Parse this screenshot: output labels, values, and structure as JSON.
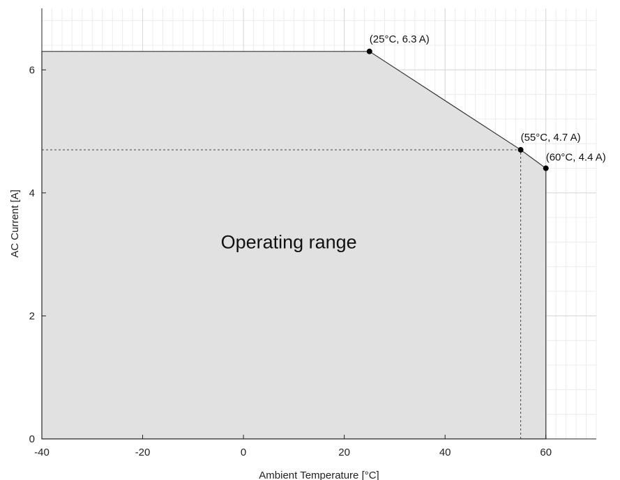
{
  "chart_data": {
    "type": "area",
    "title": "",
    "xlabel": "Ambient Temperature [°C]",
    "ylabel": "AC Current [A]",
    "xlim": [
      -40,
      70
    ],
    "ylim": [
      0,
      7
    ],
    "xticks": [
      -40,
      -20,
      0,
      20,
      40,
      60
    ],
    "yticks": [
      0,
      2,
      4,
      6
    ],
    "x_minor_step": 2,
    "y_minor_step": 0.4,
    "grid": true,
    "series": [
      {
        "x": [
          -40,
          25,
          55,
          60,
          60,
          -40
        ],
        "y": [
          6.3,
          6.3,
          4.7,
          4.4,
          0,
          0
        ],
        "fill": "#e1e1e1",
        "line": "#333333"
      }
    ],
    "markers": [
      {
        "x": 25,
        "y": 6.3,
        "label": "(25°C, 6.3 A)"
      },
      {
        "x": 55,
        "y": 4.7,
        "label": "(55°C, 4.7 A)"
      },
      {
        "x": 60,
        "y": 4.4,
        "label": "(60°C, 4.4 A)"
      }
    ],
    "reference_lines": [
      {
        "x_from": -40,
        "x_to": 55,
        "y": 4.7,
        "style": "dashed"
      },
      {
        "x": 55,
        "y_from": 0,
        "y_to": 4.7,
        "style": "dashed"
      }
    ],
    "region_label": {
      "text": "Operating range",
      "x": 9,
      "y": 3.1
    }
  }
}
